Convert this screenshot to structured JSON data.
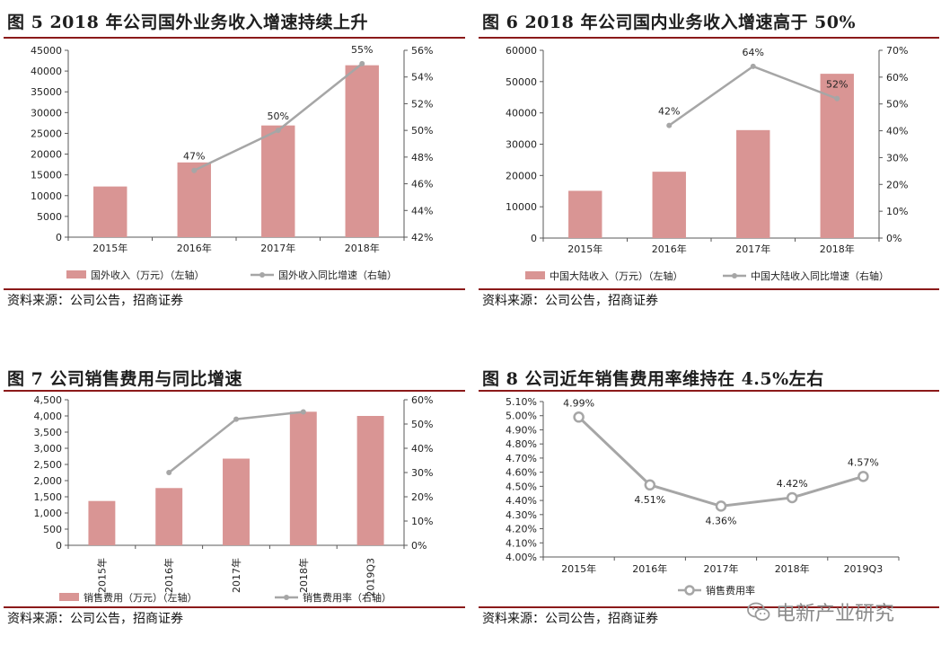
{
  "panels": [
    {
      "title": "图 5 2018 年公司国外业务收入增速持续上升",
      "source": "资料来源：公司公告，招商证券"
    },
    {
      "title": "图 6 2018 年公司国内业务收入增速高于 50%",
      "source": "资料来源：公司公告，招商证券"
    },
    {
      "title": "图 7 公司销售费用与同比增速",
      "source": "资料来源：公司公告，招商证券"
    },
    {
      "title": "图 8 公司近年销售费用率维持在 4.5%左右",
      "source": "资料来源：公司公告，招商证券"
    }
  ],
  "watermark": {
    "text": "电新产业研究",
    "icon": "wechat-icon"
  },
  "chart_data": [
    {
      "type": "bar",
      "categories": [
        "2015年",
        "2016年",
        "2017年",
        "2018年"
      ],
      "series": [
        {
          "name": "国外收入（万元）（左轴）",
          "kind": "bar",
          "axis": "left",
          "values": [
            12200,
            18000,
            26900,
            41400
          ],
          "color": "#d99594"
        },
        {
          "name": "国外收入同比增速（右轴）",
          "kind": "line",
          "axis": "right",
          "values": [
            null,
            47,
            50,
            55
          ],
          "labels": [
            "",
            "47%",
            "50%",
            "55%"
          ],
          "color": "#a6a6a6"
        }
      ],
      "y_left": {
        "min": 0,
        "max": 45000,
        "step": 5000,
        "ticks": [
          "0",
          "5000",
          "10000",
          "15000",
          "20000",
          "25000",
          "30000",
          "35000",
          "40000",
          "45000"
        ]
      },
      "y_right": {
        "min": 42,
        "max": 56,
        "step": 2,
        "ticks": [
          "42%",
          "44%",
          "46%",
          "48%",
          "50%",
          "52%",
          "54%",
          "56%"
        ]
      },
      "legend": "bottom"
    },
    {
      "type": "bar",
      "categories": [
        "2015年",
        "2016年",
        "2017年",
        "2018年"
      ],
      "series": [
        {
          "name": "中国大陆收入（万元）（左轴）",
          "kind": "bar",
          "axis": "left",
          "values": [
            15100,
            21200,
            34500,
            52500
          ],
          "color": "#d99594"
        },
        {
          "name": "中国大陆收入同比增速（右轴）",
          "kind": "line",
          "axis": "right",
          "values": [
            null,
            42,
            64,
            52
          ],
          "labels": [
            "",
            "42%",
            "64%",
            "52%"
          ],
          "color": "#a6a6a6"
        }
      ],
      "y_left": {
        "min": 0,
        "max": 60000,
        "step": 10000,
        "ticks": [
          "0",
          "10000",
          "20000",
          "30000",
          "40000",
          "50000",
          "60000"
        ]
      },
      "y_right": {
        "min": 0,
        "max": 70,
        "step": 10,
        "ticks": [
          "0%",
          "10%",
          "20%",
          "30%",
          "40%",
          "50%",
          "60%",
          "70%"
        ]
      },
      "legend": "bottom"
    },
    {
      "type": "bar",
      "categories": [
        "2015年",
        "2016年",
        "2017年",
        "2018年",
        "2019Q3"
      ],
      "series": [
        {
          "name": "销售费用（万元）（左轴）",
          "kind": "bar",
          "axis": "left",
          "values": [
            1370,
            1770,
            2680,
            4130,
            4000
          ],
          "color": "#d99594"
        },
        {
          "name": "销售费用率（右轴）",
          "kind": "line",
          "axis": "right",
          "values": [
            null,
            30,
            52,
            55,
            null
          ],
          "color": "#a6a6a6"
        }
      ],
      "y_left": {
        "min": 0,
        "max": 4500,
        "step": 500,
        "ticks": [
          "0",
          "500",
          "1,000",
          "1,500",
          "2,000",
          "2,500",
          "3,000",
          "3,500",
          "4,000",
          "4,500"
        ]
      },
      "y_right": {
        "min": 0,
        "max": 60,
        "step": 10,
        "ticks": [
          "0%",
          "10%",
          "20%",
          "30%",
          "40%",
          "50%",
          "60%"
        ]
      },
      "x_label_rotation": "vertical",
      "legend": "bottom"
    },
    {
      "type": "line",
      "categories": [
        "2015年",
        "2016年",
        "2017年",
        "2018年",
        "2019Q3"
      ],
      "series": [
        {
          "name": "销售费用率",
          "values": [
            4.99,
            4.51,
            4.36,
            4.42,
            4.57
          ],
          "labels": [
            "4.99%",
            "4.51%",
            "4.36%",
            "4.42%",
            "4.57%"
          ],
          "color": "#a6a6a6"
        }
      ],
      "y_left": {
        "min": 4.0,
        "max": 5.1,
        "step": 0.1,
        "ticks": [
          "4.00%",
          "4.10%",
          "4.20%",
          "4.30%",
          "4.40%",
          "4.50%",
          "4.60%",
          "4.70%",
          "4.80%",
          "4.90%",
          "5.00%",
          "5.10%"
        ]
      },
      "legend": "bottom"
    }
  ]
}
